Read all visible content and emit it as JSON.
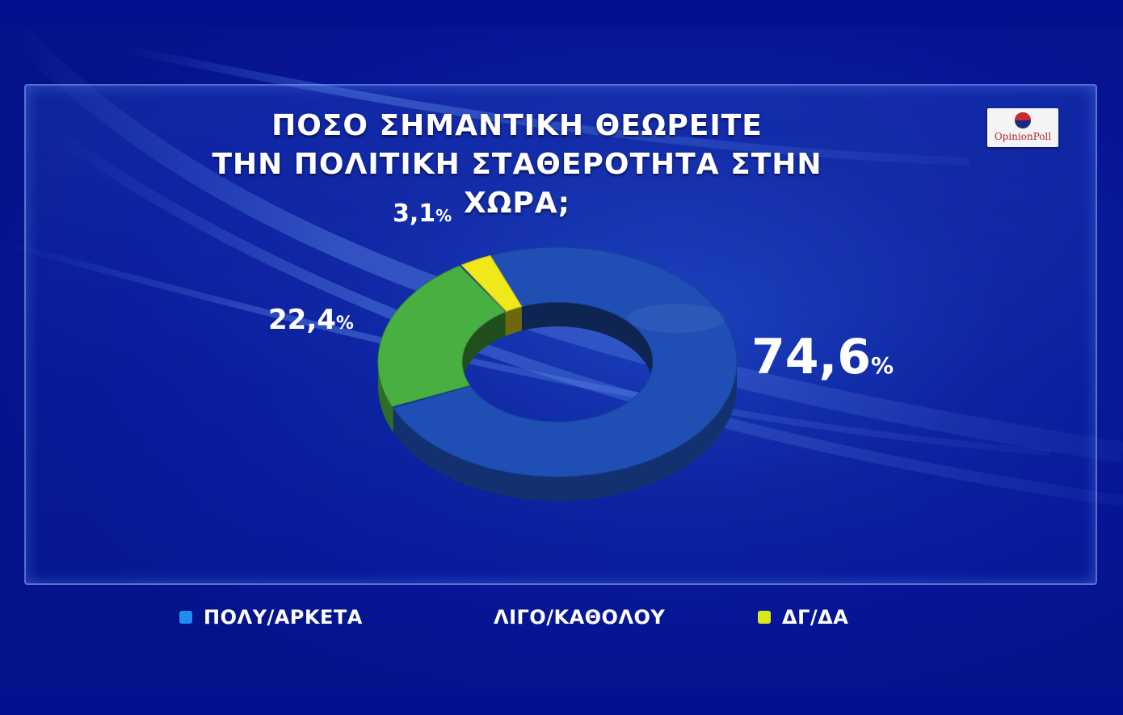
{
  "chart_data": {
    "type": "pie",
    "style": "3d-donut",
    "title_lines": [
      "ΠΟΣΟ ΣΗΜΑΝΤΙΚΗ ΘΕΩΡΕΙΤΕ",
      "ΤΗΝ ΠΟΛΙΤΙΚΗ ΣΤΑΘΕΡΟΤΗΤΑ ΣΤΗΝ ΧΩΡΑ;"
    ],
    "slices": [
      {
        "name": "ΠΟΛΥ/ΑΡΚΕΤΑ",
        "value": 74.6,
        "value_label": "74,6",
        "color": "#1f4fb5",
        "legend_color": "#1e8cf0"
      },
      {
        "name": "ΛΙΓΟ/ΚΑΘΟΛΟΥ",
        "value": 22.4,
        "value_label": "22,4",
        "color": "#48b040",
        "legend_color": "#1f8f5a"
      },
      {
        "name": "ΔΓ/ΔΑ",
        "value": 3.1,
        "value_label": "3,1",
        "color": "#f0e81a",
        "legend_color": "#d8ea1a"
      }
    ],
    "unit": "%",
    "legend_position": "bottom"
  },
  "brand": {
    "logo_text": "OpinionPoll",
    "colors": {
      "background": "#06148f"
    }
  }
}
